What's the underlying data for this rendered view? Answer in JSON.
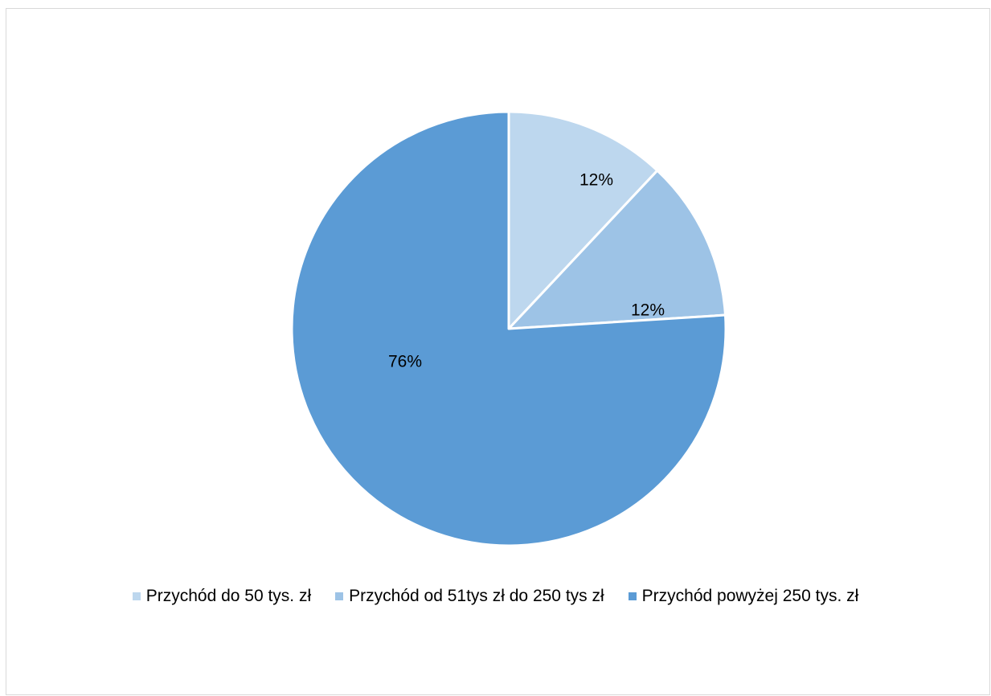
{
  "chart_data": {
    "type": "pie",
    "title": "",
    "slices": [
      {
        "label": "Przychód do 50 tys. zł",
        "value": 12,
        "data_label": "12%",
        "color": "#bdd7ee"
      },
      {
        "label": "Przychód od 51tys zł do 250 tys zł",
        "value": 12,
        "data_label": "12%",
        "color": "#9dc3e6"
      },
      {
        "label": "Przychód powyżej 250 tys. zł",
        "value": 76,
        "data_label": "76%",
        "color": "#5b9bd5"
      }
    ],
    "legend_position": "bottom",
    "start_angle": "12 o'clock",
    "direction": "clockwise",
    "slice_border_color": "#ffffff"
  }
}
